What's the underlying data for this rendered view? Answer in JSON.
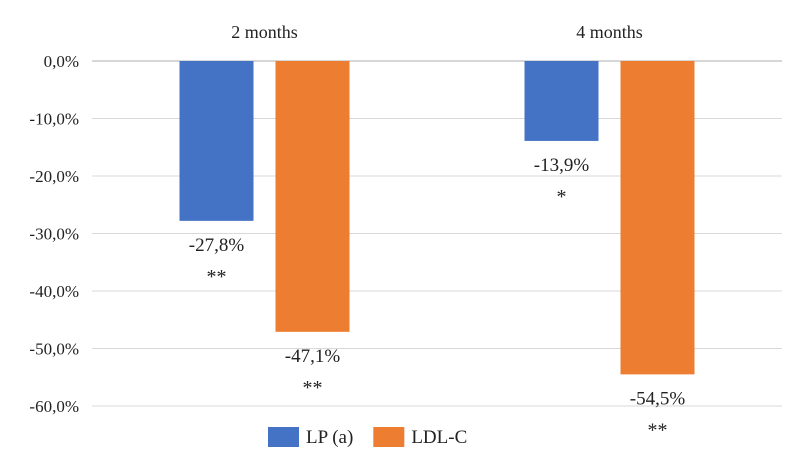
{
  "chart_data": {
    "type": "bar",
    "title": "",
    "xlabel": "",
    "ylabel": "",
    "categories": [
      "2 months",
      "4 months"
    ],
    "series": [
      {
        "name": "LP (a)",
        "color": "#4472C4",
        "values": [
          -27.8,
          -13.9
        ],
        "labels": [
          "-27,8%",
          "-13,9%"
        ],
        "significance": [
          "**",
          "*"
        ]
      },
      {
        "name": "LDL-C",
        "color": "#ED7D31",
        "values": [
          -47.1,
          -54.5
        ],
        "labels": [
          "-47,1%",
          "-54,5%"
        ],
        "significance": [
          "**",
          "**"
        ]
      }
    ],
    "ylim": [
      -60,
      0
    ],
    "yticks": [
      0,
      -10,
      -20,
      -30,
      -40,
      -50,
      -60
    ],
    "ytick_labels": [
      "0,0%",
      "-10,0%",
      "-20,0%",
      "-30,0%",
      "-40,0%",
      "-50,0%",
      "-60,0%"
    ],
    "category_labels_position": "top",
    "grid": true,
    "legend": "bottom-center"
  }
}
